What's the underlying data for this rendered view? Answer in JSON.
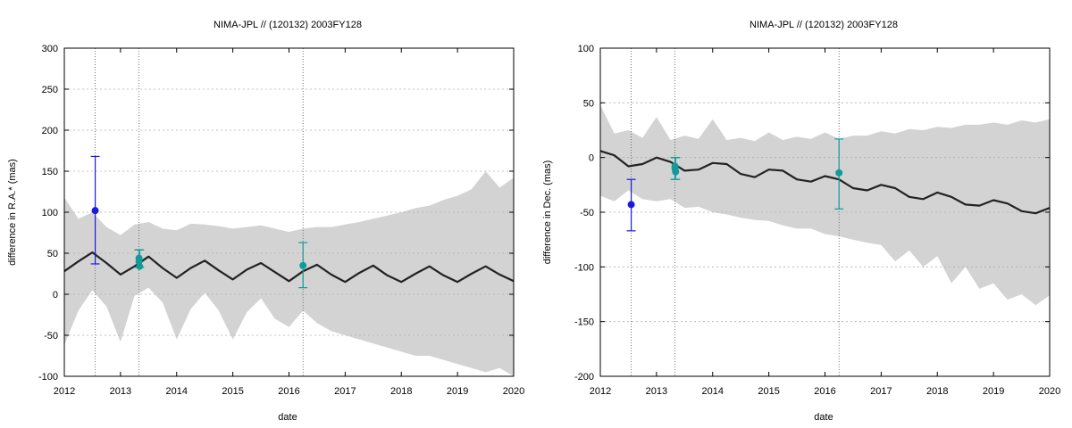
{
  "chart_data": [
    {
      "type": "line",
      "title": "NIMA-JPL // (120132) 2003FY128",
      "xlabel": "date",
      "ylabel": "difference in R.A.* (mas)",
      "xlim": [
        2012,
        2020
      ],
      "ylim": [
        -100,
        300
      ],
      "xticks": [
        2012,
        2013,
        2014,
        2015,
        2016,
        2017,
        2018,
        2019,
        2020
      ],
      "yticks": [
        -100,
        -50,
        0,
        50,
        100,
        150,
        200,
        250,
        300
      ],
      "grid": true,
      "colors": {
        "band": "#d3d3d3",
        "curve": "#222222",
        "obs_old": "#1a1adb",
        "obs_new": "#129a9a",
        "grid": "#b0b0b0"
      },
      "epoch_lines": [
        2012.55,
        2013.33,
        2016.25
      ],
      "model_curve": {
        "x": [
          2012.0,
          2012.25,
          2012.5,
          2012.75,
          2013.0,
          2013.25,
          2013.5,
          2013.75,
          2014.0,
          2014.25,
          2014.5,
          2014.75,
          2015.0,
          2015.25,
          2015.5,
          2015.75,
          2016.0,
          2016.25,
          2016.5,
          2016.75,
          2017.0,
          2017.25,
          2017.5,
          2017.75,
          2018.0,
          2018.25,
          2018.5,
          2018.75,
          2019.0,
          2019.25,
          2019.5,
          2019.75,
          2020.0
        ],
        "y": [
          28,
          40,
          51,
          38,
          24,
          34,
          46,
          32,
          20,
          32,
          41,
          29,
          18,
          30,
          38,
          27,
          16,
          28,
          36,
          24,
          15,
          26,
          35,
          23,
          15,
          25,
          34,
          23,
          15,
          25,
          34,
          24,
          16
        ]
      },
      "uncertainty_band": {
        "x": [
          2012.0,
          2012.25,
          2012.5,
          2012.75,
          2013.0,
          2013.25,
          2013.5,
          2013.75,
          2014.0,
          2014.25,
          2014.5,
          2014.75,
          2015.0,
          2015.25,
          2015.5,
          2015.75,
          2016.0,
          2016.25,
          2016.5,
          2016.75,
          2017.0,
          2017.25,
          2017.5,
          2017.75,
          2018.0,
          2018.25,
          2018.5,
          2018.75,
          2019.0,
          2019.25,
          2019.5,
          2019.75,
          2020.0
        ],
        "upper": [
          118,
          92,
          100,
          82,
          72,
          85,
          88,
          80,
          78,
          86,
          85,
          83,
          80,
          82,
          84,
          80,
          76,
          80,
          82,
          82,
          85,
          88,
          92,
          96,
          100,
          105,
          108,
          115,
          120,
          128,
          150,
          130,
          142
        ],
        "lower": [
          -62,
          -20,
          5,
          -15,
          -58,
          -2,
          8,
          -10,
          -55,
          -18,
          2,
          -20,
          -55,
          -22,
          -5,
          -30,
          -40,
          -20,
          -35,
          -45,
          -50,
          -55,
          -60,
          -65,
          -70,
          -75,
          -75,
          -80,
          -85,
          -90,
          -95,
          -90,
          -100
        ]
      },
      "observations": [
        {
          "x": 2012.55,
          "y": 102,
          "err_low": 37,
          "err_high": 168,
          "group": "old"
        },
        {
          "x": 2013.33,
          "y": 44,
          "err_low": 33,
          "err_high": 54,
          "group": "new"
        },
        {
          "x": 2013.33,
          "y": 40,
          "err_low": 33,
          "err_high": 54,
          "group": "new"
        },
        {
          "x": 2013.34,
          "y": 34,
          "err_low": 33,
          "err_high": 54,
          "group": "new"
        },
        {
          "x": 2016.25,
          "y": 35,
          "err_low": 8,
          "err_high": 63,
          "group": "new"
        }
      ]
    },
    {
      "type": "line",
      "title": "NIMA-JPL // (120132) 2003FY128",
      "xlabel": "date",
      "ylabel": "difference in Dec. (mas)",
      "xlim": [
        2012,
        2020
      ],
      "ylim": [
        -200,
        100
      ],
      "xticks": [
        2012,
        2013,
        2014,
        2015,
        2016,
        2017,
        2018,
        2019,
        2020
      ],
      "yticks": [
        -200,
        -150,
        -100,
        -50,
        0,
        50,
        100
      ],
      "grid": true,
      "colors": {
        "band": "#d3d3d3",
        "curve": "#222222",
        "obs_old": "#1a1adb",
        "obs_new": "#129a9a",
        "grid": "#b0b0b0"
      },
      "epoch_lines": [
        2012.55,
        2013.33,
        2016.25
      ],
      "model_curve": {
        "x": [
          2012.0,
          2012.25,
          2012.5,
          2012.75,
          2013.0,
          2013.25,
          2013.5,
          2013.75,
          2014.0,
          2014.25,
          2014.5,
          2014.75,
          2015.0,
          2015.25,
          2015.5,
          2015.75,
          2016.0,
          2016.25,
          2016.5,
          2016.75,
          2017.0,
          2017.25,
          2017.5,
          2017.75,
          2018.0,
          2018.25,
          2018.5,
          2018.75,
          2019.0,
          2019.25,
          2019.5,
          2019.75,
          2020.0
        ],
        "y": [
          6,
          2,
          -8,
          -6,
          0,
          -4,
          -12,
          -11,
          -5,
          -6,
          -15,
          -18,
          -11,
          -12,
          -20,
          -22,
          -17,
          -20,
          -28,
          -30,
          -25,
          -28,
          -36,
          -38,
          -32,
          -36,
          -43,
          -44,
          -39,
          -42,
          -49,
          -51,
          -46
        ]
      },
      "uncertainty_band": {
        "x": [
          2012.0,
          2012.25,
          2012.5,
          2012.75,
          2013.0,
          2013.25,
          2013.5,
          2013.75,
          2014.0,
          2014.25,
          2014.5,
          2014.75,
          2015.0,
          2015.25,
          2015.5,
          2015.75,
          2016.0,
          2016.25,
          2016.5,
          2016.75,
          2017.0,
          2017.25,
          2017.5,
          2017.75,
          2018.0,
          2018.25,
          2018.5,
          2018.75,
          2019.0,
          2019.25,
          2019.5,
          2019.75,
          2020.0
        ],
        "upper": [
          48,
          22,
          25,
          18,
          37,
          16,
          20,
          17,
          35,
          16,
          18,
          15,
          23,
          16,
          19,
          17,
          23,
          17,
          20,
          20,
          24,
          22,
          26,
          25,
          28,
          27,
          30,
          30,
          32,
          30,
          34,
          32,
          35
        ],
        "lower": [
          -35,
          -40,
          -30,
          -38,
          -40,
          -38,
          -46,
          -45,
          -50,
          -52,
          -55,
          -57,
          -58,
          -62,
          -65,
          -65,
          -70,
          -72,
          -75,
          -78,
          -80,
          -95,
          -85,
          -100,
          -90,
          -115,
          -100,
          -120,
          -115,
          -130,
          -125,
          -135,
          -126
        ]
      },
      "observations": [
        {
          "x": 2012.55,
          "y": -43,
          "err_low": -67,
          "err_high": -20,
          "group": "old"
        },
        {
          "x": 2013.33,
          "y": -8,
          "err_low": -20,
          "err_high": 0,
          "group": "new"
        },
        {
          "x": 2013.33,
          "y": -10,
          "err_low": -20,
          "err_high": 0,
          "group": "new"
        },
        {
          "x": 2013.34,
          "y": -13,
          "err_low": -20,
          "err_high": 0,
          "group": "new"
        },
        {
          "x": 2016.25,
          "y": -14,
          "err_low": -47,
          "err_high": 17,
          "group": "new"
        }
      ]
    }
  ]
}
